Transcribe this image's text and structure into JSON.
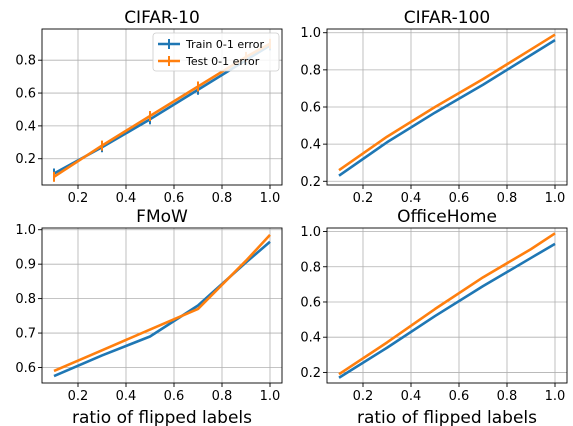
{
  "legend": {
    "placement": "top-right",
    "entries": [
      "Train 0-1 error",
      "Test 0-1 error"
    ]
  },
  "chart_data": [
    {
      "type": "line",
      "title": "CIFAR-10",
      "xlabel": "",
      "ylabel": "",
      "x": [
        0.1,
        0.3,
        0.5,
        0.7,
        0.9,
        1.0
      ],
      "xlim": [
        0.05,
        1.05
      ],
      "ylim": [
        0.04,
        0.99
      ],
      "xticks": [
        0.2,
        0.4,
        0.6,
        0.8,
        1.0
      ],
      "yticks": [
        0.2,
        0.4,
        0.6,
        0.8
      ],
      "grid": true,
      "legend": "top-right",
      "series": [
        {
          "name": "Train 0-1 error",
          "color": "#1f77b4",
          "values": [
            0.11,
            0.27,
            0.44,
            0.62,
            0.8,
            0.89
          ],
          "error_bars": true
        },
        {
          "name": "Test 0-1 error",
          "color": "#ff7f0e",
          "values": [
            0.09,
            0.28,
            0.46,
            0.64,
            0.82,
            0.9
          ],
          "error_bars": true
        }
      ]
    },
    {
      "type": "line",
      "title": "CIFAR-100",
      "xlabel": "",
      "ylabel": "",
      "x": [
        0.1,
        0.3,
        0.5,
        0.7,
        0.9,
        1.0
      ],
      "xlim": [
        0.05,
        1.05
      ],
      "ylim": [
        0.18,
        1.02
      ],
      "xticks": [
        0.2,
        0.4,
        0.6,
        0.8,
        1.0
      ],
      "yticks": [
        0.2,
        0.4,
        0.6,
        0.8,
        1.0
      ],
      "grid": true,
      "series": [
        {
          "name": "Train 0-1 error",
          "color": "#1f77b4",
          "values": [
            0.23,
            0.41,
            0.57,
            0.72,
            0.88,
            0.96
          ]
        },
        {
          "name": "Test 0-1 error",
          "color": "#ff7f0e",
          "values": [
            0.26,
            0.44,
            0.6,
            0.75,
            0.91,
            0.99
          ]
        }
      ]
    },
    {
      "type": "line",
      "title": "FMoW",
      "xlabel": "ratio of flipped labels",
      "ylabel": "",
      "x": [
        0.1,
        0.3,
        0.5,
        0.7,
        0.9,
        1.0
      ],
      "xlim": [
        0.05,
        1.05
      ],
      "ylim": [
        0.555,
        1.005
      ],
      "xticks": [
        0.2,
        0.4,
        0.6,
        0.8,
        1.0
      ],
      "yticks": [
        0.6,
        0.7,
        0.8,
        0.9,
        1.0
      ],
      "grid": true,
      "series": [
        {
          "name": "Train 0-1 error",
          "color": "#1f77b4",
          "values": [
            0.575,
            0.635,
            0.69,
            0.78,
            0.905,
            0.965
          ]
        },
        {
          "name": "Test 0-1 error",
          "color": "#ff7f0e",
          "values": [
            0.59,
            0.65,
            0.71,
            0.77,
            0.91,
            0.985
          ]
        }
      ]
    },
    {
      "type": "line",
      "title": "OfficeHome",
      "xlabel": "ratio of flipped labels",
      "ylabel": "",
      "x": [
        0.1,
        0.3,
        0.5,
        0.7,
        0.9,
        1.0
      ],
      "xlim": [
        0.05,
        1.05
      ],
      "ylim": [
        0.14,
        1.02
      ],
      "xticks": [
        0.2,
        0.4,
        0.6,
        0.8,
        1.0
      ],
      "yticks": [
        0.2,
        0.4,
        0.6,
        0.8,
        1.0
      ],
      "grid": true,
      "series": [
        {
          "name": "Train 0-1 error",
          "color": "#1f77b4",
          "values": [
            0.17,
            0.34,
            0.52,
            0.69,
            0.85,
            0.93
          ]
        },
        {
          "name": "Test 0-1 error",
          "color": "#ff7f0e",
          "values": [
            0.19,
            0.37,
            0.56,
            0.74,
            0.9,
            0.99
          ]
        }
      ]
    }
  ]
}
